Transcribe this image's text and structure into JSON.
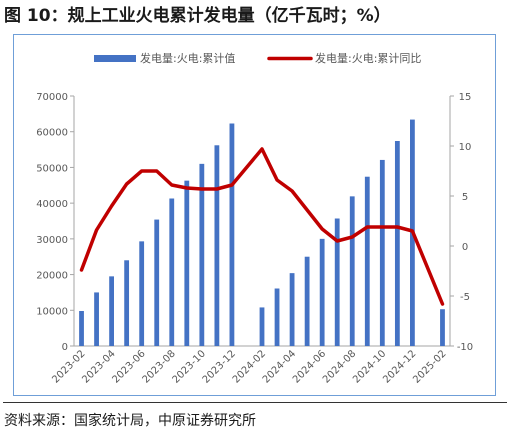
{
  "figure": {
    "title": "图 10：规上工业火电累计发电量（亿千瓦时；%）",
    "source": "资料来源：国家统计局，中原证券研究所"
  },
  "chart_data": {
    "type": "bar+line",
    "x": [
      "2023-02",
      "2023-03",
      "2023-04",
      "2023-05",
      "2023-06",
      "2023-07",
      "2023-08",
      "2023-09",
      "2023-10",
      "2023-11",
      "2023-12",
      "2024-01",
      "2024-02",
      "2024-03",
      "2024-04",
      "2024-05",
      "2024-06",
      "2024-07",
      "2024-08",
      "2024-09",
      "2024-10",
      "2024-11",
      "2024-12",
      "2025-01",
      "2025-02"
    ],
    "x_tick_labels": [
      "2023-02",
      "2023-04",
      "2023-06",
      "2023-08",
      "2023-10",
      "2023-12",
      "2024-02",
      "2024-04",
      "2024-06",
      "2024-08",
      "2024-10",
      "2024-12",
      "2025-02"
    ],
    "series": [
      {
        "name": "发电量:火电:累计值",
        "kind": "bar",
        "axis": "left",
        "color": "#4472c4",
        "values": [
          9800,
          15000,
          19500,
          24000,
          29300,
          35400,
          41300,
          46300,
          51000,
          56200,
          62300,
          null,
          10800,
          16100,
          20400,
          25000,
          30000,
          35700,
          41900,
          47400,
          52100,
          57400,
          63400,
          null,
          10300
        ]
      },
      {
        "name": "发电量:火电:累计同比",
        "kind": "line",
        "axis": "right",
        "color": "#c00000",
        "values": [
          -2.4,
          1.6,
          4.0,
          6.2,
          7.5,
          7.5,
          6.1,
          5.8,
          5.7,
          5.7,
          6.1,
          null,
          9.7,
          6.6,
          5.5,
          3.6,
          1.7,
          0.5,
          0.9,
          1.9,
          1.9,
          1.9,
          1.5,
          null,
          -5.8
        ]
      }
    ],
    "y_left": {
      "min": 0,
      "max": 70000,
      "ticks": [
        0,
        10000,
        20000,
        30000,
        40000,
        50000,
        60000,
        70000
      ]
    },
    "y_right": {
      "min": -10,
      "max": 15,
      "ticks": [
        -10,
        -5,
        0,
        5,
        10,
        15
      ]
    },
    "legend_position": "top",
    "grid": false
  }
}
